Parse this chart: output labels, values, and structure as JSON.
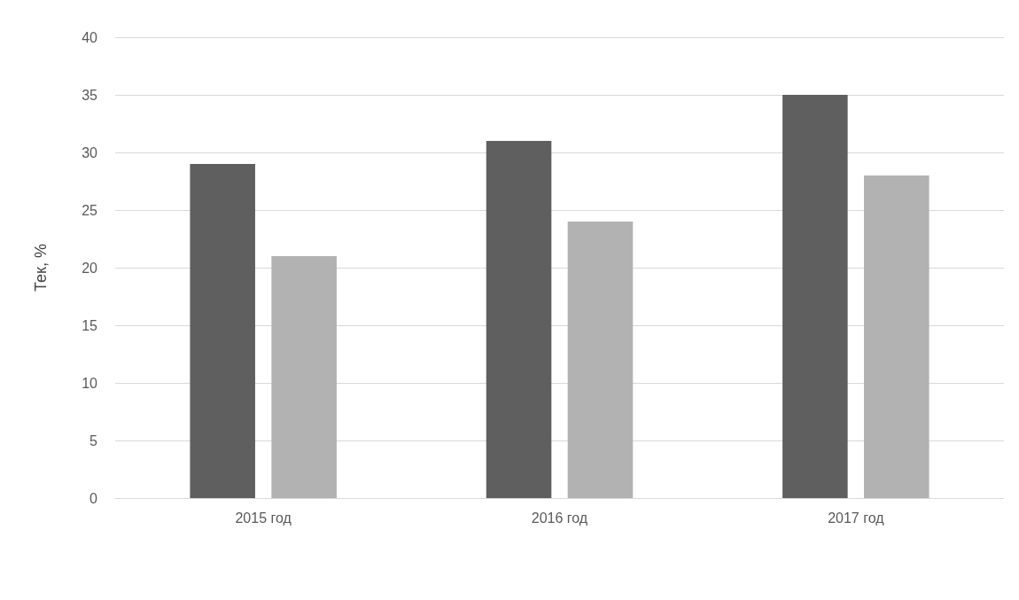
{
  "chart_data": {
    "type": "bar",
    "ylabel": "Тек, %",
    "categories": [
      "2015 год",
      "2016 год",
      "2017 год"
    ],
    "series": [
      {
        "color": "#5f5f5f",
        "values": [
          29,
          31,
          35
        ]
      },
      {
        "color": "#b2b2b2",
        "values": [
          21,
          24,
          28
        ]
      }
    ],
    "ylim": [
      0,
      40
    ],
    "yticks": [
      0,
      5,
      10,
      15,
      20,
      25,
      30,
      35,
      40
    ],
    "grid": "y"
  }
}
